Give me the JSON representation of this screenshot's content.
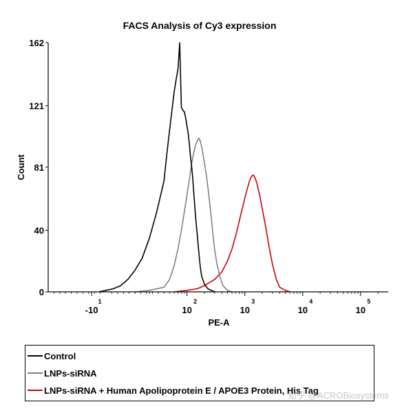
{
  "chart_data": {
    "type": "line",
    "title": "FACS Analysis of Cy3 expression",
    "xlabel": "PE-A",
    "ylabel": "Count",
    "ylim": [
      0,
      162
    ],
    "yticks": [
      0,
      40,
      81,
      121,
      162
    ],
    "xscale": "biexponential",
    "xlim_display": [
      -40,
      300000
    ],
    "xticks": [
      {
        "value": -10,
        "base": "-10",
        "exp": "1"
      },
      {
        "value": 100,
        "base": "10",
        "exp": "2"
      },
      {
        "value": 1000,
        "base": "10",
        "exp": "3"
      },
      {
        "value": 10000,
        "base": "10",
        "exp": "4"
      },
      {
        "value": 100000,
        "base": "10",
        "exp": "5"
      }
    ],
    "series": [
      {
        "name": "Control",
        "color": "#000000",
        "points": [
          [
            -5,
            0
          ],
          [
            0,
            1
          ],
          [
            5,
            2
          ],
          [
            10,
            4
          ],
          [
            15,
            8
          ],
          [
            20,
            14
          ],
          [
            25,
            22
          ],
          [
            30,
            35
          ],
          [
            35,
            52
          ],
          [
            40,
            72
          ],
          [
            45,
            90
          ],
          [
            50,
            105
          ],
          [
            55,
            118
          ],
          [
            60,
            130
          ],
          [
            65,
            138
          ],
          [
            70,
            145
          ],
          [
            75,
            162
          ],
          [
            80,
            120
          ],
          [
            85,
            118
          ],
          [
            90,
            117
          ],
          [
            95,
            113
          ],
          [
            100,
            108
          ],
          [
            105,
            103
          ],
          [
            110,
            96
          ],
          [
            115,
            88
          ],
          [
            120,
            82
          ],
          [
            125,
            75
          ],
          [
            130,
            66
          ],
          [
            135,
            58
          ],
          [
            140,
            50
          ],
          [
            150,
            38
          ],
          [
            160,
            26
          ],
          [
            170,
            16
          ],
          [
            180,
            10
          ],
          [
            200,
            5
          ],
          [
            230,
            2
          ],
          [
            300,
            0
          ]
        ]
      },
      {
        "name": "LNPs-siRNA",
        "color": "#808080",
        "points": [
          [
            20,
            0
          ],
          [
            30,
            1
          ],
          [
            40,
            3
          ],
          [
            50,
            8
          ],
          [
            60,
            17
          ],
          [
            70,
            28
          ],
          [
            80,
            40
          ],
          [
            90,
            52
          ],
          [
            100,
            63
          ],
          [
            110,
            73
          ],
          [
            120,
            83
          ],
          [
            130,
            90
          ],
          [
            140,
            95
          ],
          [
            150,
            98
          ],
          [
            160,
            100
          ],
          [
            170,
            98
          ],
          [
            180,
            94
          ],
          [
            190,
            89
          ],
          [
            200,
            84
          ],
          [
            220,
            74
          ],
          [
            240,
            62
          ],
          [
            260,
            50
          ],
          [
            280,
            38
          ],
          [
            300,
            28
          ],
          [
            330,
            18
          ],
          [
            370,
            10
          ],
          [
            420,
            4
          ],
          [
            500,
            1
          ],
          [
            600,
            0
          ]
        ]
      },
      {
        "name": "LNPs-siRNA + Human Apolipoprotein E / APOE3 Protein, His Tag",
        "color": "#cc0000",
        "points": [
          [
            60,
            0
          ],
          [
            100,
            1
          ],
          [
            150,
            2
          ],
          [
            200,
            4
          ],
          [
            300,
            8
          ],
          [
            400,
            13
          ],
          [
            500,
            20
          ],
          [
            600,
            28
          ],
          [
            700,
            37
          ],
          [
            800,
            46
          ],
          [
            900,
            54
          ],
          [
            1000,
            61
          ],
          [
            1100,
            67
          ],
          [
            1200,
            72
          ],
          [
            1300,
            75
          ],
          [
            1400,
            76
          ],
          [
            1500,
            74
          ],
          [
            1600,
            71
          ],
          [
            1800,
            63
          ],
          [
            2000,
            54
          ],
          [
            2300,
            42
          ],
          [
            2600,
            30
          ],
          [
            3000,
            18
          ],
          [
            3500,
            8
          ],
          [
            4000,
            3
          ],
          [
            5000,
            1
          ],
          [
            6000,
            0
          ]
        ]
      }
    ]
  },
  "legend": {
    "items": [
      {
        "label": "Control",
        "color": "#000000"
      },
      {
        "label": "LNPs-siRNA",
        "color": "#808080"
      },
      {
        "label": "LNPs-siRNA + Human Apolipoprotein E / APOE3 Protein, His Tag",
        "color": "#cc0000"
      }
    ]
  },
  "watermark": "知乎 @ACROBiosystems"
}
